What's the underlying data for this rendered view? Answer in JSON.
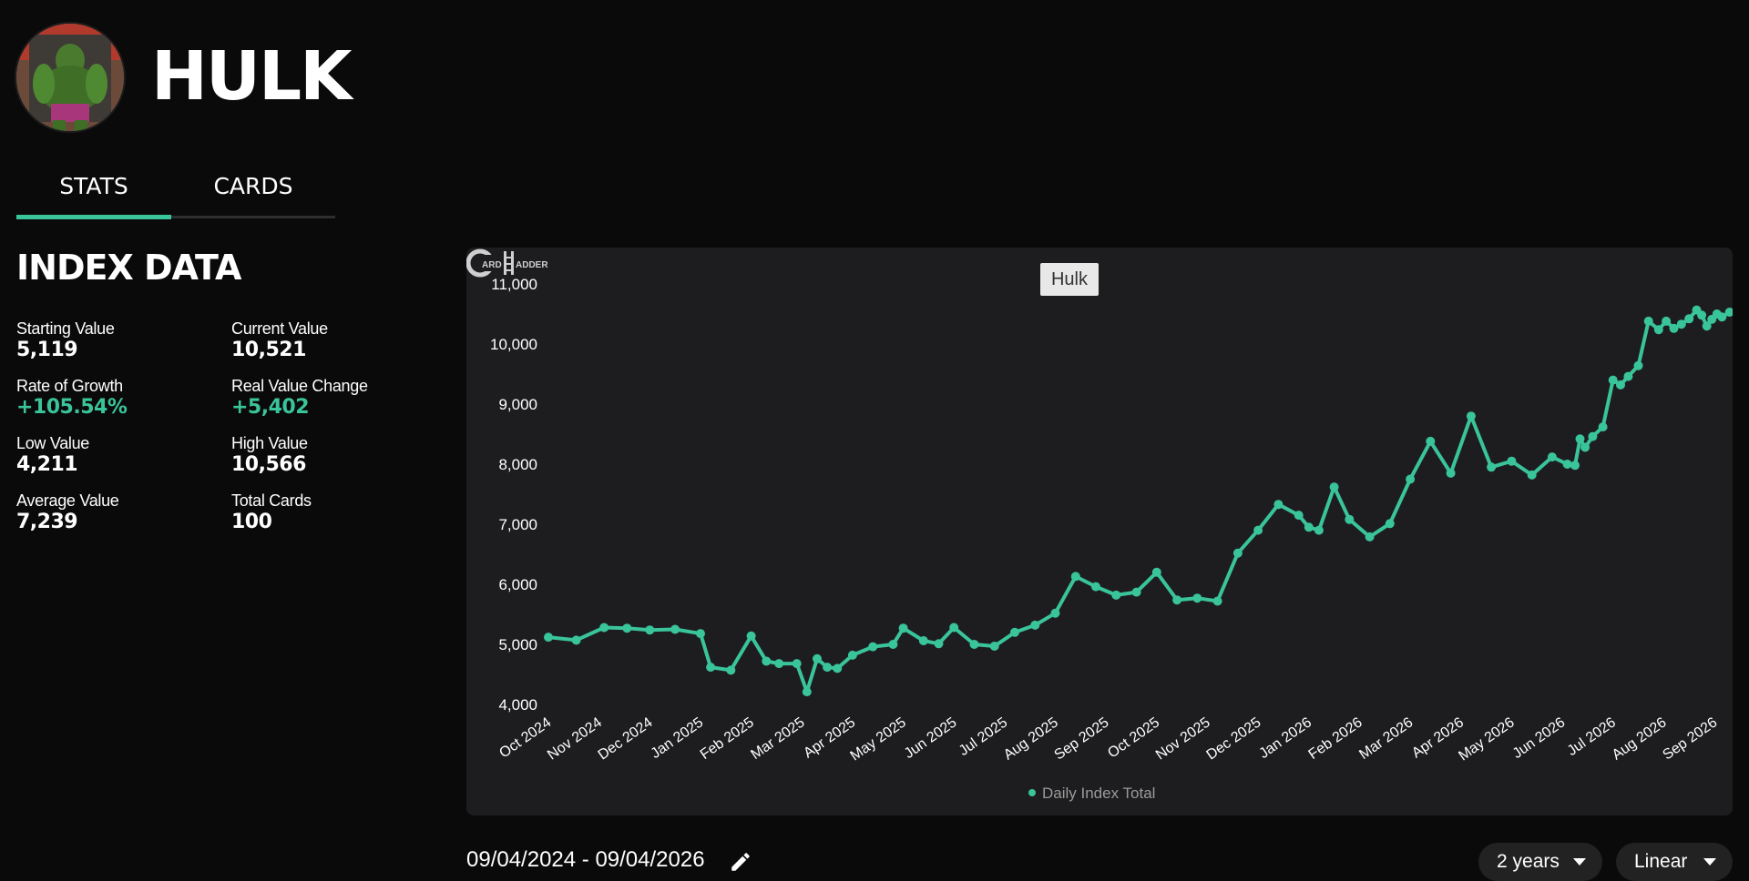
{
  "character": {
    "name": "HULK"
  },
  "tabs": [
    {
      "label": "STATS"
    },
    {
      "label": "CARDS"
    }
  ],
  "index_data": {
    "title": "INDEX DATA",
    "stats": [
      {
        "label": "Starting Value",
        "value": "5,119",
        "highlight": false
      },
      {
        "label": "Current Value",
        "value": "10,521",
        "highlight": false
      },
      {
        "label": "Rate of Growth",
        "value": "+105.54%",
        "highlight": true
      },
      {
        "label": "Real Value Change",
        "value": "+5,402",
        "highlight": true
      },
      {
        "label": "Low Value",
        "value": "4,211",
        "highlight": false
      },
      {
        "label": "High Value",
        "value": "10,566",
        "highlight": false
      },
      {
        "label": "Average Value",
        "value": "7,239",
        "highlight": false
      },
      {
        "label": "Total Cards",
        "value": "100",
        "highlight": false
      }
    ]
  },
  "colors": {
    "accent": "#3ac49a",
    "panel": "#1d1d1f",
    "background": "#0a0a0a"
  },
  "chart_data": {
    "type": "line",
    "title": "Hulk",
    "legend": "Daily Index Total",
    "legend_position": "bottom",
    "grid": false,
    "ylim": [
      4000,
      11000
    ],
    "y_ticks": [
      "4,000",
      "5,000",
      "6,000",
      "7,000",
      "8,000",
      "9,000",
      "10,000",
      "11,000"
    ],
    "x_ticks": [
      "Oct 2024",
      "Nov 2024",
      "Dec 2024",
      "Jan 2025",
      "Feb 2025",
      "Mar 2025",
      "Apr 2025",
      "May 2025",
      "Jun 2025",
      "Jul 2025",
      "Aug 2025",
      "Sep 2025",
      "Oct 2025",
      "Nov 2025",
      "Dec 2025",
      "Jan 2026",
      "Feb 2026",
      "Mar 2026",
      "Apr 2026",
      "May 2026",
      "Jun 2026",
      "Jul 2026",
      "Aug 2026",
      "Sep 2026"
    ],
    "series": [
      {
        "name": "Daily Index Total",
        "color": "#3ac49a",
        "x": [
          0,
          0.55,
          1.1,
          1.55,
          2.0,
          2.5,
          3.0,
          3.2,
          3.6,
          4.0,
          4.3,
          4.55,
          4.9,
          5.1,
          5.3,
          5.5,
          5.7,
          6.0,
          6.4,
          6.8,
          7.0,
          7.4,
          7.7,
          8.0,
          8.4,
          8.8,
          9.2,
          9.6,
          10.0,
          10.4,
          10.8,
          11.2,
          11.6,
          12.0,
          12.4,
          12.8,
          13.2,
          13.6,
          14.0,
          14.4,
          14.8,
          15.0,
          15.2,
          15.5,
          15.8,
          16.2,
          16.6,
          17.0,
          17.4,
          17.8,
          18.2,
          18.6,
          19.0,
          19.4,
          19.8,
          20.1,
          20.25,
          20.35,
          20.45,
          20.6,
          20.8,
          21.0,
          21.15,
          21.3,
          21.5,
          21.7,
          21.9,
          22.05,
          22.2,
          22.35,
          22.5,
          22.65,
          22.75,
          22.85,
          22.95,
          23.05,
          23.15,
          23.3,
          23.45
        ],
        "y": [
          5119,
          5070,
          5280,
          5270,
          5240,
          5250,
          5180,
          4620,
          4570,
          5140,
          4720,
          4680,
          4680,
          4211,
          4760,
          4620,
          4600,
          4820,
          4960,
          5000,
          5270,
          5060,
          5010,
          5280,
          5000,
          4970,
          5200,
          5320,
          5520,
          6130,
          5960,
          5820,
          5870,
          6200,
          5740,
          5770,
          5720,
          6520,
          6900,
          7330,
          7150,
          6950,
          6900,
          7620,
          7080,
          6790,
          7010,
          7750,
          8380,
          7850,
          8800,
          7950,
          8050,
          7820,
          8120,
          8000,
          7980,
          8420,
          8280,
          8460,
          8620,
          9400,
          9320,
          9460,
          9640,
          10380,
          10240,
          10380,
          10260,
          10330,
          10420,
          10566,
          10480,
          10300,
          10410,
          10500,
          10450,
          10530,
          10521
        ]
      }
    ]
  },
  "controls": {
    "date_range": "09/04/2024 - 09/04/2026",
    "range_select": "2 years",
    "scale_select": "Linear"
  }
}
